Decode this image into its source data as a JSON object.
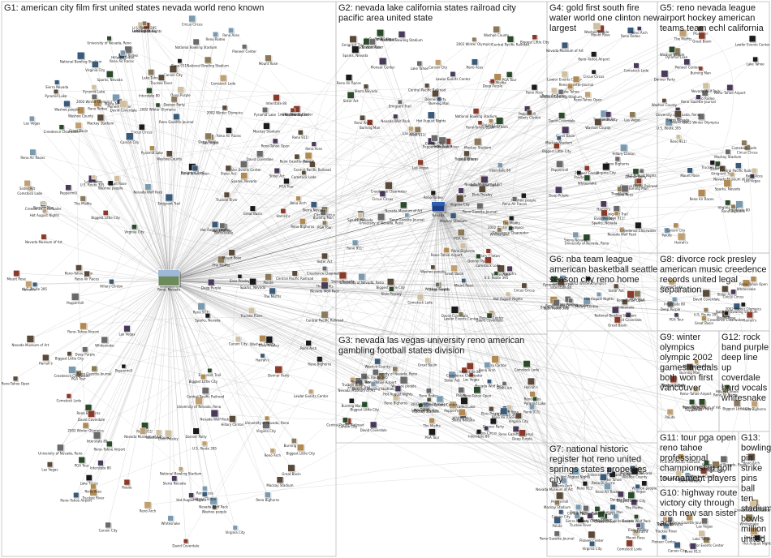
{
  "colors": {
    "background": "#ffffff",
    "edge": "#9a9a9a",
    "frame": "#bdbdbd",
    "text": "#1a1a1a"
  },
  "groups": [
    {
      "id": "G1",
      "title": "G1: american city film first united states nevada world reno known"
    },
    {
      "id": "G2",
      "title": "G2: nevada lake california states railroad city pacific area united state"
    },
    {
      "id": "G3",
      "title": "G3: nevada las vegas university reno american gambling football states division"
    },
    {
      "id": "G4",
      "title": "G4: gold first south fire water world one clinton new largest"
    },
    {
      "id": "G5",
      "title": "G5: reno nevada league airport hockey american teams team echl california"
    },
    {
      "id": "G6",
      "title": "G6: nba team league american basketball seattle season city reno home"
    },
    {
      "id": "G7",
      "title": "G7: national historic register hot reno united springs states properties city"
    },
    {
      "id": "G8",
      "title": "G8: divorce rock presley american music creedence records united legal separation"
    },
    {
      "id": "G9",
      "title": "G9: winter olympics olympic 2002 games medals both won first vancouver"
    },
    {
      "id": "G10",
      "title": "G10: highway route victory city through arch new san sister act"
    },
    {
      "id": "G11",
      "title": "G11: tour pga open reno tahoe professional championship golf tournament players"
    },
    {
      "id": "G12",
      "title": "G12: rock band purple deep line up coverdale hard vocals whitesnake"
    },
    {
      "id": "G13",
      "title": "G13: bowling pin strike pins ball ten stadium bowls million united"
    }
  ],
  "hub_nodes": [
    {
      "group": "G1",
      "label": "Reno, Nevada"
    },
    {
      "group": "G2",
      "label": "Nevada"
    }
  ],
  "node_labels": [
    "The Misfits",
    "Reno 911!",
    "Lake Tahoe",
    "Truckee River",
    "Carson City",
    "Sparks, Nevada",
    "Las Vegas",
    "University of Nevada, Reno",
    "Nevada Wolf Pack",
    "Sierra Nevada",
    "Central Pacific Railroad",
    "Virginia City",
    "Comstock Lode",
    "Washoe County",
    "Reno Aces",
    "Reno Bighorns",
    "Reno Air Races",
    "Hillary Clinton",
    "Biggest Little City",
    "Reno Arch",
    "Hot August Nights",
    "Elvis Presley",
    "Creedence Clearwater",
    "Deep Purple",
    "Whitesnake",
    "David Coverdale",
    "National Bowling Stadium",
    "Reno-Tahoe Open",
    "PGA Tour",
    "2002 Winter Olympics",
    "Interstate 80",
    "U.S. Route 395",
    "Sister Act",
    "Pyramid Lake",
    "Great Basin",
    "Mount Rose",
    "Harrah's",
    "Circus Circus",
    "Peppermill",
    "Reno–Tahoe Airport",
    "Reno Rodeo",
    "Burning Man",
    "Donner Party",
    "Emigrant Trail",
    "Paiute",
    "Washoe people",
    "Nevada Museum of Art",
    "Mackay Stadium",
    "Lawlor Events Center",
    "Pioneer Center",
    "Reno Gazette-Journal"
  ]
}
